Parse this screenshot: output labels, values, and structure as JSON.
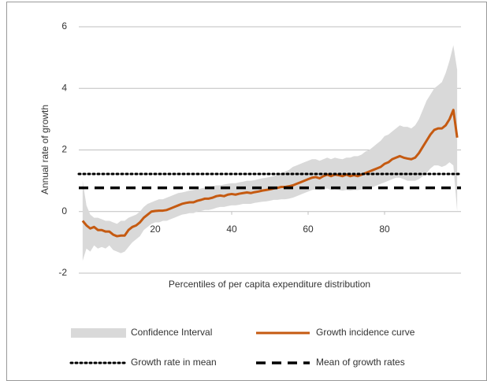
{
  "chart_data": {
    "type": "growth-incidence",
    "x_label": "Percentiles of per capita expenditure distribution",
    "y_label": "Annual rate of growth",
    "xlim": [
      0,
      100
    ],
    "xticks": [
      20,
      40,
      60,
      80
    ],
    "ylim": [
      -2,
      6
    ],
    "yticks": [
      -2,
      0,
      2,
      4,
      6
    ],
    "grid": true,
    "x": [
      1,
      2,
      3,
      4,
      5,
      6,
      7,
      8,
      9,
      10,
      11,
      12,
      13,
      14,
      15,
      16,
      17,
      18,
      19,
      20,
      21,
      22,
      23,
      24,
      25,
      26,
      27,
      28,
      29,
      30,
      31,
      32,
      33,
      34,
      35,
      36,
      37,
      38,
      39,
      40,
      41,
      42,
      43,
      44,
      45,
      46,
      47,
      48,
      49,
      50,
      51,
      52,
      53,
      54,
      55,
      56,
      57,
      58,
      59,
      60,
      61,
      62,
      63,
      64,
      65,
      66,
      67,
      68,
      69,
      70,
      71,
      72,
      73,
      74,
      75,
      76,
      77,
      78,
      79,
      80,
      81,
      82,
      83,
      84,
      85,
      86,
      87,
      88,
      89,
      90,
      91,
      92,
      93,
      94,
      95,
      96,
      97,
      98,
      99
    ],
    "series": [
      {
        "name": "Confidence Interval",
        "kind": "band",
        "color": "#d9d9d9",
        "lower": [
          -1.6,
          -1.2,
          -1.3,
          -1.1,
          -1.2,
          -1.15,
          -1.2,
          -1.1,
          -1.25,
          -1.3,
          -1.35,
          -1.3,
          -1.15,
          -1.0,
          -0.9,
          -0.8,
          -0.6,
          -0.5,
          -0.4,
          -0.35,
          -0.35,
          -0.3,
          -0.3,
          -0.25,
          -0.2,
          -0.15,
          -0.1,
          -0.08,
          -0.05,
          -0.05,
          0,
          0.02,
          0.05,
          0.05,
          0.08,
          0.12,
          0.15,
          0.15,
          0.18,
          0.2,
          0.2,
          0.22,
          0.25,
          0.25,
          0.25,
          0.28,
          0.3,
          0.32,
          0.33,
          0.35,
          0.38,
          0.38,
          0.4,
          0.4,
          0.42,
          0.45,
          0.5,
          0.55,
          0.6,
          0.65,
          0.7,
          0.72,
          0.7,
          0.72,
          0.75,
          0.7,
          0.72,
          0.7,
          0.68,
          0.7,
          0.68,
          0.7,
          0.7,
          0.72,
          0.75,
          0.78,
          0.8,
          0.85,
          0.9,
          0.95,
          1.0,
          1.05,
          1.1,
          1.1,
          1.05,
          1.0,
          1.0,
          1.0,
          1.05,
          1.15,
          1.25,
          1.4,
          1.5,
          1.5,
          1.45,
          1.5,
          1.6,
          1.5,
          0.0
        ],
        "upper": [
          1.0,
          0.2,
          -0.1,
          -0.2,
          -0.2,
          -0.25,
          -0.3,
          -0.3,
          -0.35,
          -0.4,
          -0.3,
          -0.3,
          -0.2,
          -0.15,
          -0.1,
          0,
          0.15,
          0.25,
          0.3,
          0.35,
          0.4,
          0.4,
          0.45,
          0.5,
          0.55,
          0.6,
          0.62,
          0.65,
          0.68,
          0.7,
          0.72,
          0.75,
          0.78,
          0.8,
          0.82,
          0.85,
          0.85,
          0.88,
          0.9,
          0.92,
          0.92,
          0.95,
          0.97,
          1.0,
          1.0,
          1.02,
          1.05,
          1.08,
          1.1,
          1.12,
          1.15,
          1.2,
          1.25,
          1.3,
          1.35,
          1.45,
          1.5,
          1.55,
          1.6,
          1.65,
          1.7,
          1.7,
          1.65,
          1.7,
          1.75,
          1.7,
          1.75,
          1.72,
          1.7,
          1.75,
          1.75,
          1.8,
          1.8,
          1.85,
          1.95,
          2.0,
          2.1,
          2.2,
          2.3,
          2.45,
          2.5,
          2.6,
          2.7,
          2.8,
          2.75,
          2.75,
          2.7,
          2.8,
          3.0,
          3.3,
          3.6,
          3.8,
          4.0,
          4.1,
          4.2,
          4.5,
          4.9,
          5.4,
          4.6
        ]
      },
      {
        "name": "Growth incidence curve",
        "kind": "line",
        "color": "#c55a11",
        "values": [
          -0.3,
          -0.45,
          -0.55,
          -0.5,
          -0.6,
          -0.6,
          -0.65,
          -0.65,
          -0.75,
          -0.8,
          -0.78,
          -0.78,
          -0.6,
          -0.5,
          -0.45,
          -0.35,
          -0.2,
          -0.1,
          0,
          0.02,
          0.03,
          0.03,
          0.05,
          0.1,
          0.15,
          0.2,
          0.25,
          0.28,
          0.3,
          0.3,
          0.35,
          0.38,
          0.42,
          0.42,
          0.45,
          0.5,
          0.52,
          0.5,
          0.55,
          0.57,
          0.55,
          0.58,
          0.6,
          0.62,
          0.6,
          0.63,
          0.65,
          0.68,
          0.7,
          0.72,
          0.75,
          0.77,
          0.8,
          0.8,
          0.82,
          0.85,
          0.9,
          0.95,
          1.0,
          1.05,
          1.1,
          1.12,
          1.08,
          1.15,
          1.2,
          1.15,
          1.2,
          1.18,
          1.15,
          1.2,
          1.15,
          1.18,
          1.15,
          1.2,
          1.25,
          1.3,
          1.35,
          1.4,
          1.45,
          1.55,
          1.6,
          1.7,
          1.75,
          1.8,
          1.75,
          1.72,
          1.7,
          1.75,
          1.9,
          2.1,
          2.3,
          2.5,
          2.65,
          2.7,
          2.7,
          2.8,
          3.0,
          3.3,
          2.4
        ]
      },
      {
        "name": "Growth rate in mean",
        "kind": "hline",
        "dash": "dotted",
        "color": "#000000",
        "value": 1.22
      },
      {
        "name": "Mean of growth rates",
        "kind": "hline",
        "dash": "dashed",
        "color": "#000000",
        "value": 0.77
      }
    ]
  }
}
